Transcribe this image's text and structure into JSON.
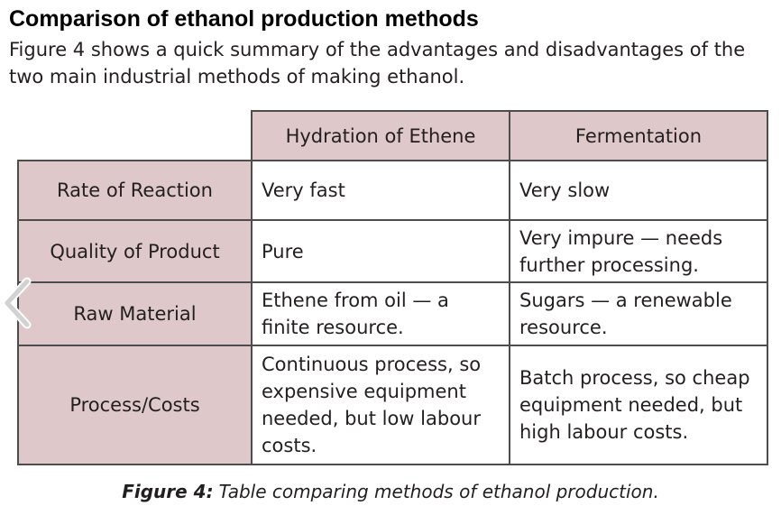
{
  "heading": "Comparison of ethanol production methods",
  "intro": "Figure 4 shows a quick summary of the advantages and disadvantages of the two main industrial methods of making ethanol.",
  "table": {
    "columns": [
      "Hydration of Ethene",
      "Fermentation"
    ],
    "rows": [
      {
        "label": "Rate of Reaction",
        "cells": [
          "Very fast",
          "Very slow"
        ]
      },
      {
        "label": "Quality of Product",
        "cells": [
          "Pure",
          "Very impure — needs further processing."
        ]
      },
      {
        "label": "Raw Material",
        "cells": [
          "Ethene from oil — a finite resource.",
          "Sugars — a renewable resource."
        ]
      },
      {
        "label": "Process/Costs",
        "cells": [
          "Continuous process, so expensive equipment needed, but low labour costs.",
          "Batch process, so cheap equipment needed, but high labour costs."
        ]
      }
    ]
  },
  "caption": {
    "label": "Figure 4:",
    "text": "Table comparing methods of ethanol production."
  },
  "nav": {
    "prev_icon": "chevron-left-icon"
  },
  "colors": {
    "header_fill": "#dfc8c9",
    "border": "#4d4d4d"
  }
}
